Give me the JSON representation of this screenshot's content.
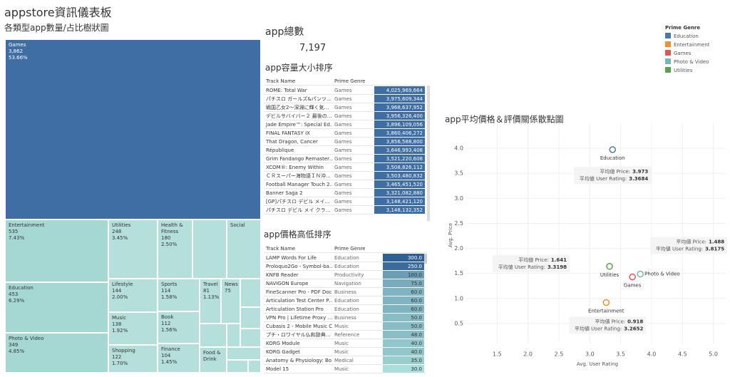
{
  "header": {
    "title": "appstore資訊儀表板"
  },
  "treemap": {
    "title": "各類型app數量/占比樹狀圖",
    "cells": [
      {
        "name": "Games",
        "count": "3,862",
        "share": "53.66%"
      },
      {
        "name": "Entertainment",
        "count": "535",
        "share": "7.43%"
      },
      {
        "name": "Education",
        "count": "453",
        "share": "6.29%"
      },
      {
        "name": "Photo & Video",
        "count": "349",
        "share": "4.85%"
      },
      {
        "name": "Utilities",
        "count": "248",
        "share": "3.45%"
      },
      {
        "name": "Health & Fitness",
        "count": "180",
        "share": "2.50%"
      },
      {
        "name": "Social"
      },
      {
        "name": "Lifestyle",
        "count": "144",
        "share": "2.00%"
      },
      {
        "name": "Music",
        "count": "138",
        "share": "1.92%"
      },
      {
        "name": "Shopping",
        "count": "122",
        "share": "1.70%"
      },
      {
        "name": "Sports",
        "count": "114",
        "share": "1.58%"
      },
      {
        "name": "Book",
        "count": "112",
        "share": "1.56%"
      },
      {
        "name": "Finance",
        "count": "104",
        "share": "1.45%"
      },
      {
        "name": "Travel",
        "count": "81",
        "share": "1.13%"
      },
      {
        "name": "News",
        "count": "75"
      },
      {
        "name": "Food & Drink"
      }
    ]
  },
  "total": {
    "title": "app總數",
    "value": "7,197"
  },
  "size_table": {
    "title": "app容量大小排序",
    "columns": [
      "Track Name",
      "Prime Genre"
    ],
    "rows": [
      [
        "ROME: Total War",
        "Games",
        "4,025,969,664"
      ],
      [
        "パチスロ ガールズ&パンツ…",
        "Games",
        "3,975,609,344"
      ],
      [
        "戦国乙女2～深淵に輝く気…",
        "Games",
        "3,968,637,952"
      ],
      [
        "デビルサバイバー２ 最後の…",
        "Games",
        "3,956,326,400"
      ],
      [
        "Jade Empire™: Special Ed…",
        "Games",
        "3,896,109,056"
      ],
      [
        "FINAL FANTASY IX",
        "Games",
        "3,860,406,272"
      ],
      [
        "That Dragon, Cancer",
        "Games",
        "3,856,588,800"
      ],
      [
        "République",
        "Games",
        "3,646,993,408"
      ],
      [
        "Grim Fandango Remaster…",
        "Games",
        "3,521,220,608"
      ],
      [
        "XCOM®: Enemy Within",
        "Games",
        "3,508,826,112"
      ],
      [
        "ＣＲスーパー海物語ＩＮ沖…",
        "Games",
        "3,503,480,832"
      ],
      [
        "Football Manager Touch 2…",
        "Games",
        "3,465,451,520"
      ],
      [
        "Banner Saga 2",
        "Games",
        "3,321,082,880"
      ],
      [
        "[GP]パチスロ デビル メイ…",
        "Games",
        "3,148,421,120"
      ],
      [
        "パチスロ デビル メイ クラ…",
        "Games",
        "3,148,132,352"
      ]
    ]
  },
  "price_table": {
    "title": "app價格高低排序",
    "columns": [
      "Track Name",
      "Prime Genre"
    ],
    "rows": [
      [
        "LAMP Words For Life",
        "Education",
        "300.0"
      ],
      [
        "Proloquo2Go - Symbol-ba…",
        "Education",
        "250.0"
      ],
      [
        "KNFB Reader",
        "Productivity",
        "100.0"
      ],
      [
        "NAVIGON Europe",
        "Navigation",
        "75.0"
      ],
      [
        "FineScanner Pro - PDF Doc…",
        "Business",
        "60.0"
      ],
      [
        "Articulation Test Center P…",
        "Education",
        "60.0"
      ],
      [
        "Articulation Station Pro",
        "Education",
        "60.0"
      ],
      [
        "VPN Pro | Lifetime Proxy …",
        "Business",
        "50.0"
      ],
      [
        "Cubasis 2 - Mobile Music C…",
        "Music",
        "50.0"
      ],
      [
        "プチ・ロワイヤル仏和辞典…",
        "Reference",
        "48.0"
      ],
      [
        "KORG Module",
        "Music",
        "40.0"
      ],
      [
        "KORG Gadget",
        "Music",
        "40.0"
      ],
      [
        "Anatomy & Physiology: Bo…",
        "Medical",
        "35.0"
      ],
      [
        "Model 15",
        "Music",
        "30.0"
      ]
    ]
  },
  "chart_data": {
    "type": "scatter",
    "title": "app平均價格＆評價關係散點圖",
    "x_label": "Avg. User Rating",
    "y_label": "Avg. Price",
    "legend_title": "Prime Genre",
    "legend": "top-right",
    "grid": true,
    "price_prefix": "平均値 Price:",
    "rating_prefix": "平均値 User Rating:",
    "xlim": [
      1.0,
      5.2
    ],
    "xticks": [
      1.5,
      {
        "value": 2,
        "label": "2.0"
      },
      2.5,
      {
        "value": 3,
        "label": "3.0"
      },
      3.5,
      {
        "value": 4,
        "label": "4.0"
      },
      4.5,
      {
        "value": 5,
        "label": "5.0"
      }
    ],
    "ylim": [
      0.1,
      4.5
    ],
    "yticks": [
      0.5,
      {
        "value": 1,
        "label": "1.0"
      },
      1.5,
      {
        "value": 2,
        "label": "2.0"
      },
      2.5,
      {
        "value": 3,
        "label": "3.0"
      },
      3.5,
      {
        "value": 4,
        "label": "4.0"
      }
    ],
    "series": [
      {
        "name": "Education",
        "color": "#4e79a7",
        "x": [
          3.3684
        ],
        "values": [
          3.973
        ],
        "annotated": true
      },
      {
        "name": "Entertainment",
        "color": "#f28e2b",
        "x": [
          3.2652
        ],
        "values": [
          0.918
        ],
        "annotated": true
      },
      {
        "name": "Games",
        "color": "#e15759",
        "x": [
          3.69
        ],
        "values": [
          1.43
        ],
        "annotated": false
      },
      {
        "name": "Photo & Video",
        "color": "#76b7b2",
        "x": [
          3.8175
        ],
        "values": [
          1.488
        ],
        "annotated": true
      },
      {
        "name": "Utilities",
        "color": "#59a14f",
        "x": [
          3.3198
        ],
        "values": [
          1.641
        ],
        "annotated": true
      }
    ]
  }
}
